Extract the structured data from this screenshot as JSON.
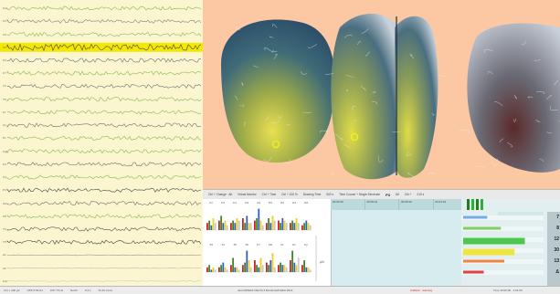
{
  "eeg": {
    "channels": [
      "Fp1",
      "F3",
      "C3",
      "P3",
      "O1",
      "F7",
      "T3",
      "T5",
      "Fz",
      "Cz",
      "Pz",
      "Fp2",
      "F4",
      "C4",
      "P4",
      "O2",
      "F8",
      "T4",
      "T6",
      "A1",
      "A2",
      "Fpz"
    ],
    "highlighted_channel_index": 3,
    "trace_colors": [
      "#85b84f",
      "#7f7f7f",
      "#85b84f",
      "#444444",
      "#6f6f6f",
      "#85b84f",
      "#6f6f6f",
      "#85b84f",
      "#85b84f",
      "#6f6f6f",
      "#85b84f",
      "#85b84f",
      "#6f6f6f",
      "#85b84f",
      "#444444",
      "#6f6f6f",
      "#85b84f",
      "#555555",
      "#444444",
      "#999999",
      "#bbbbbb",
      "#cccccc"
    ]
  },
  "brain": {
    "view_names": [
      "left-lateral-view",
      "top-view",
      "right-lateral-view"
    ],
    "marker_color": "#e8f020"
  },
  "info_strip": {
    "items": [
      "Ctrl + Change · Alt",
      "Virtual Monitor",
      "Ctrl + Time",
      "Ctrl + 100 %",
      "Drawing Time",
      "500 s",
      "Time Course + Single Electrode",
      "Alt",
      "Ctrl +",
      "210 s"
    ],
    "bold_label": "P3"
  },
  "time_table": {
    "cells": [
      "00:00:40",
      "00:00:41",
      "00:00:43",
      "01:01:16"
    ]
  },
  "spectra": {
    "row1_labels": [
      "Cz",
      "F3",
      "F4",
      "C3",
      "C4",
      "P3",
      "P4",
      "O1",
      "O2"
    ],
    "row2_labels": [
      "T3",
      "T4",
      "T5",
      "T6",
      "F7",
      "F8",
      "Fz",
      "Pz",
      "Fp"
    ],
    "y_unit": "µV²",
    "row1_values": [
      [
        0.3,
        0.4,
        0.2,
        0.5,
        0.3
      ],
      [
        0.4,
        0.6,
        0.3,
        0.4,
        0.2
      ],
      [
        0.3,
        0.4,
        0.3,
        0.5,
        0.4
      ],
      [
        0.5,
        0.3,
        0.6,
        0.3,
        0.3
      ],
      [
        0.4,
        0.5,
        0.9,
        0.4,
        0.2
      ],
      [
        0.3,
        0.5,
        0.3,
        0.6,
        0.4
      ],
      [
        0.4,
        0.3,
        0.5,
        0.4,
        0.3
      ],
      [
        0.3,
        0.4,
        0.3,
        0.5,
        0.3
      ],
      [
        0.2,
        0.3,
        0.4,
        0.3,
        0.2
      ]
    ],
    "row2_values": [
      [
        0.2,
        0.3,
        0.1,
        0.2,
        0.1
      ],
      [
        0.2,
        0.3,
        0.4,
        0.2,
        0.1
      ],
      [
        0.3,
        0.6,
        0.2,
        0.2,
        0.1
      ],
      [
        0.3,
        0.4,
        0.9,
        0.5,
        0.2
      ],
      [
        0.5,
        0.3,
        0.2,
        0.6,
        0.3
      ],
      [
        0.4,
        0.3,
        0.5,
        0.8,
        0.2
      ],
      [
        0.3,
        0.4,
        0.3,
        0.3,
        0.2
      ],
      [
        0.5,
        0.9,
        0.4,
        0.3,
        0.6
      ],
      [
        0.3,
        0.5,
        0.2,
        0.2,
        0.1
      ]
    ],
    "bar_colors": [
      "#d42020",
      "#3a8a2a",
      "#3060c0",
      "#f0d020",
      "#c8c8c8"
    ]
  },
  "bands": {
    "labels": [
      "7",
      "8",
      "12",
      "30",
      "13",
      "Δ"
    ],
    "colors": [
      "#5ea0e0",
      "#6cc84a",
      "#30c030",
      "#f0e020",
      "#f07020",
      "#e02020"
    ],
    "levels": [
      0.35,
      0.55,
      0.9,
      0.75,
      0.6,
      0.3
    ]
  },
  "status": {
    "left_items": [
      "Ctrl + 100 µV",
      "HPF 0.53 Hz",
      "LPF 70 Hz",
      "Notch",
      "0.3 s",
      "Tk 20 mm/s"
    ],
    "center": "neuroSPEAK DELTA 4 Monitorsaft EEG 2014",
    "warning": "Artifacts · warning",
    "right": "Time 10:02:00 · 1:01:20"
  }
}
